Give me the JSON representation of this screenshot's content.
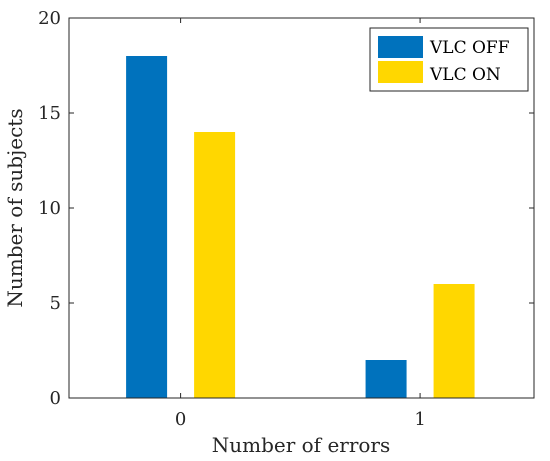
{
  "chart_data": {
    "type": "bar",
    "categories": [
      "0",
      "1"
    ],
    "series": [
      {
        "name": "VLC OFF",
        "values": [
          18,
          2
        ],
        "color": "#0072BD"
      },
      {
        "name": "VLC ON",
        "values": [
          14,
          6
        ],
        "color": "#FFD700"
      }
    ],
    "xlabel": "Number of errors",
    "ylabel": "Number of subjects",
    "ylim": [
      0,
      20
    ],
    "yticks": [
      0,
      5,
      10,
      15,
      20
    ],
    "grid": false,
    "legend_position": "top-right"
  }
}
